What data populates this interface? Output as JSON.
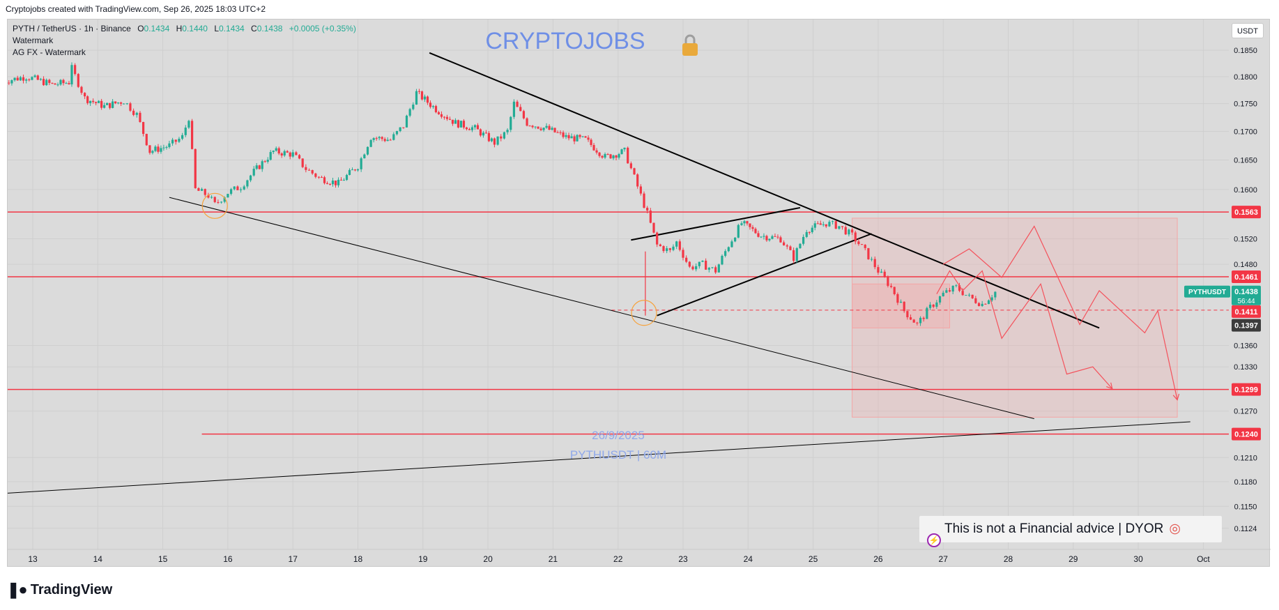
{
  "header": {
    "text": "Cryptojobs created with TradingView.com, Sep 26, 2025 18:03 UTC+2"
  },
  "legend": {
    "symbol": "PYTH / TetherUS · 1h · Binance",
    "o_label": "O",
    "o": "0.1434",
    "h_label": "H",
    "h": "0.1440",
    "l_label": "L",
    "l": "0.1434",
    "c_label": "C",
    "c": "0.1438",
    "change": "+0.0005 (+0.35%)",
    "line2": "Watermark",
    "line3": "AG FX - Watermark"
  },
  "watermark": {
    "brand": "CRYPTOJOBS",
    "brand_icon": "lock-icon",
    "date": "26/9/2025",
    "pair": "PYTHUSDT | 60M"
  },
  "currency_button": "USDT",
  "disclaimer": {
    "text": "This is not a Financial advice | DYOR",
    "icon": "target-icon",
    "badge_icon": "lightning-icon"
  },
  "logo": {
    "text": "TradingView",
    "icon": "tradingview-logo-icon"
  },
  "colors": {
    "up": "#22ab94",
    "down": "#f23645",
    "level": "#f23645",
    "trend": "#000000",
    "watermark": "#6f8fe6",
    "panel": "#dbdbdb",
    "zone": "#f5a5a5"
  },
  "chart_data": {
    "type": "candlestick",
    "symbol": "PYTHUSDT",
    "timeframe": "1h",
    "ylim": [
      0.111,
      0.188
    ],
    "y_scale": "log",
    "x_ticks": [
      {
        "label": "13",
        "day": 13
      },
      {
        "label": "14",
        "day": 14
      },
      {
        "label": "15",
        "day": 15
      },
      {
        "label": "16",
        "day": 16
      },
      {
        "label": "17",
        "day": 17
      },
      {
        "label": "18",
        "day": 18
      },
      {
        "label": "19",
        "day": 19
      },
      {
        "label": "20",
        "day": 20
      },
      {
        "label": "21",
        "day": 21
      },
      {
        "label": "22",
        "day": 22
      },
      {
        "label": "23",
        "day": 23
      },
      {
        "label": "24",
        "day": 24
      },
      {
        "label": "25",
        "day": 25
      },
      {
        "label": "26",
        "day": 26
      },
      {
        "label": "27",
        "day": 27
      },
      {
        "label": "28",
        "day": 28
      },
      {
        "label": "29",
        "day": 29
      },
      {
        "label": "30",
        "day": 30
      },
      {
        "label": "Oct",
        "day": 31
      }
    ],
    "y_ticks": [
      "0.1850",
      "0.1800",
      "0.1750",
      "0.1700",
      "0.1650",
      "0.1600",
      "0.1520",
      "0.1480",
      "0.1360",
      "0.1330",
      "0.1270",
      "0.1210",
      "0.1180",
      "0.1150",
      "0.1124"
    ],
    "price_path": [
      [
        12.5,
        0.179
      ],
      [
        12.9,
        0.18
      ],
      [
        13.3,
        0.1785
      ],
      [
        13.6,
        0.179
      ],
      [
        13.6,
        0.1815
      ],
      [
        13.8,
        0.176
      ],
      [
        14.1,
        0.1745
      ],
      [
        14.4,
        0.1755
      ],
      [
        14.6,
        0.173
      ],
      [
        14.8,
        0.1665
      ],
      [
        15.1,
        0.1675
      ],
      [
        15.3,
        0.169
      ],
      [
        15.4,
        0.1725
      ],
      [
        15.5,
        0.16
      ],
      [
        15.7,
        0.159
      ],
      [
        15.8,
        0.1575
      ],
      [
        16.0,
        0.1595
      ],
      [
        16.2,
        0.1605
      ],
      [
        16.4,
        0.163
      ],
      [
        16.7,
        0.1665
      ],
      [
        17.0,
        0.166
      ],
      [
        17.2,
        0.1635
      ],
      [
        17.4,
        0.162
      ],
      [
        17.7,
        0.161
      ],
      [
        18.0,
        0.164
      ],
      [
        18.2,
        0.169
      ],
      [
        18.5,
        0.1685
      ],
      [
        18.7,
        0.171
      ],
      [
        18.9,
        0.177
      ],
      [
        19.2,
        0.174
      ],
      [
        19.5,
        0.1715
      ],
      [
        19.8,
        0.1705
      ],
      [
        20.1,
        0.168
      ],
      [
        20.3,
        0.17
      ],
      [
        20.4,
        0.175
      ],
      [
        20.6,
        0.1715
      ],
      [
        20.9,
        0.1705
      ],
      [
        21.2,
        0.169
      ],
      [
        21.5,
        0.1685
      ],
      [
        21.8,
        0.1655
      ],
      [
        22.1,
        0.1665
      ],
      [
        22.3,
        0.1605
      ],
      [
        22.45,
        0.156
      ],
      [
        22.6,
        0.151
      ],
      [
        22.8,
        0.15
      ],
      [
        22.9,
        0.1515
      ],
      [
        23.1,
        0.1475
      ],
      [
        23.3,
        0.148
      ],
      [
        23.5,
        0.147
      ],
      [
        23.7,
        0.151
      ],
      [
        23.9,
        0.1545
      ],
      [
        24.2,
        0.1525
      ],
      [
        24.5,
        0.152
      ],
      [
        24.7,
        0.149
      ],
      [
        24.9,
        0.1535
      ],
      [
        25.2,
        0.1545
      ],
      [
        25.4,
        0.154
      ],
      [
        25.6,
        0.1525
      ],
      [
        25.8,
        0.15
      ],
      [
        26.0,
        0.147
      ],
      [
        26.2,
        0.1445
      ],
      [
        26.4,
        0.141
      ],
      [
        26.6,
        0.139
      ],
      [
        26.8,
        0.1415
      ],
      [
        27.0,
        0.1435
      ],
      [
        27.2,
        0.1445
      ],
      [
        27.4,
        0.143
      ],
      [
        27.6,
        0.142
      ],
      [
        27.8,
        0.1438
      ]
    ],
    "horizontal_levels": [
      {
        "price": 0.1563,
        "label": "0.1563",
        "x_start": 12.0
      },
      {
        "price": 0.1461,
        "label": "0.1461",
        "x_start": 12.0
      },
      {
        "price": 0.1299,
        "label": "0.1299",
        "x_start": 12.0
      },
      {
        "price": 0.124,
        "label": "0.1240",
        "x_start": 15.6
      }
    ],
    "dashed_level": {
      "price": 0.1411,
      "label": "0.1411",
      "x_start": 21.9
    },
    "current_price": {
      "label": "PYTHUSDT",
      "price": 0.1438,
      "value": "0.1438",
      "countdown": "56:44"
    },
    "extra_label": {
      "price": 0.1397,
      "value": "0.1397"
    },
    "trendlines": [
      {
        "x1": 19.1,
        "p1": 0.1845,
        "x2": 29.4,
        "p2": 0.1385,
        "width": 2
      },
      {
        "x1": 15.1,
        "p1": 0.1587,
        "x2": 28.4,
        "p2": 0.126,
        "width": 1
      },
      {
        "x1": 12.0,
        "p1": 0.1163,
        "x2": 30.8,
        "p2": 0.1256,
        "width": 1
      },
      {
        "x1": 22.2,
        "p1": 0.1518,
        "x2": 24.8,
        "p2": 0.157,
        "width": 2
      },
      {
        "x1": 22.6,
        "p1": 0.1403,
        "x2": 25.9,
        "p2": 0.1528,
        "width": 2
      }
    ],
    "circles": [
      {
        "x": 15.8,
        "price": 0.1573
      },
      {
        "x": 22.4,
        "price": 0.1407
      }
    ],
    "zones": [
      {
        "x1": 25.6,
        "x2": 30.6,
        "p_top": 0.1553,
        "p_bottom": 0.1262,
        "opacity": 0.25
      },
      {
        "x1": 25.6,
        "x2": 27.1,
        "p_top": 0.145,
        "p_bottom": 0.1385,
        "opacity": 0.35
      }
    ],
    "projection_paths": [
      [
        [
          27.0,
          0.148
        ],
        [
          27.4,
          0.1504
        ],
        [
          27.9,
          0.146
        ],
        [
          28.4,
          0.154
        ],
        [
          29.1,
          0.139
        ],
        [
          29.4,
          0.144
        ],
        [
          30.1,
          0.1378
        ],
        [
          30.3,
          0.141
        ],
        [
          30.6,
          0.1285
        ]
      ],
      [
        [
          26.9,
          0.1435
        ],
        [
          27.1,
          0.147
        ],
        [
          27.3,
          0.144
        ],
        [
          27.6,
          0.147
        ],
        [
          27.9,
          0.137
        ],
        [
          28.5,
          0.145
        ],
        [
          28.9,
          0.132
        ],
        [
          29.3,
          0.133
        ],
        [
          29.6,
          0.13
        ]
      ]
    ]
  }
}
